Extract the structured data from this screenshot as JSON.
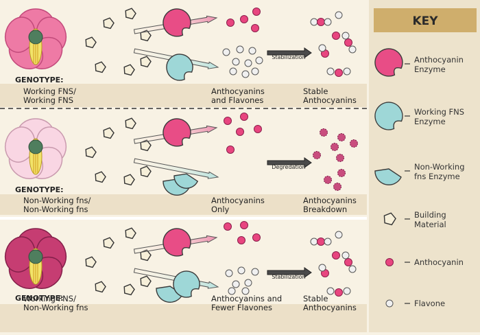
{
  "panels": [
    {
      "genotype_label": "GENOTYPE:",
      "genotype_line1": "Working FNS/",
      "genotype_line2": "Working FNS",
      "middle_line1": "Anthocyanins",
      "middle_line2": "and Flavones",
      "right_line1": "Stable",
      "right_line2": "Anthocyanins",
      "arrow_label": "Stabilization",
      "flower": "pink"
    },
    {
      "genotype_label": "GENOTYPE:",
      "genotype_line1": "Non-Working fns/",
      "genotype_line2": "Non-Working fns",
      "middle_line1": "Anthocyanins",
      "middle_line2": "Only",
      "right_line1": "Anthocyanins",
      "right_line2": "Breakdown",
      "arrow_label": "Degredation",
      "flower": "pale pink"
    },
    {
      "genotype_label": "GENOTYPE:",
      "genotype_line1": "Working FNS/",
      "genotype_line2": "Non-Working fns",
      "middle_line1": "Anthocyanins and",
      "middle_line2": "Fewer Flavones",
      "right_line1": "Stable",
      "right_line2": "Anthocyanins",
      "arrow_label": "Stabilization",
      "flower": "magenta"
    }
  ],
  "key": {
    "title": "KEY",
    "items": [
      {
        "icon": "anthocyanin-enzyme-icon",
        "line1": "Anthocyanin",
        "line2": "Enzyme"
      },
      {
        "icon": "working-fns-enzyme-icon",
        "line1": "Working FNS",
        "line2": "Enzyme"
      },
      {
        "icon": "non-working-fns-enzyme-icon",
        "line1": "Non-Working",
        "line2": "fns Enzyme"
      },
      {
        "icon": "building-material-icon",
        "line1": "Building",
        "line2": "Material"
      },
      {
        "icon": "anthocyanin-icon",
        "line1": "Anthocyanin",
        "line2": ""
      },
      {
        "icon": "flavone-icon",
        "line1": "Flavone",
        "line2": ""
      }
    ]
  },
  "colors": {
    "background": "#f8f2e4",
    "band": "#ece0c8",
    "key_panel": "#ede3cc",
    "key_title": "#cfae6c",
    "anthocyanin": "#e8457f",
    "enzyme_pink": "#e84d86",
    "enzyme_teal": "#9ed7d7",
    "flavone": "#f0f0f0",
    "pentagon": "#f6efd9"
  }
}
